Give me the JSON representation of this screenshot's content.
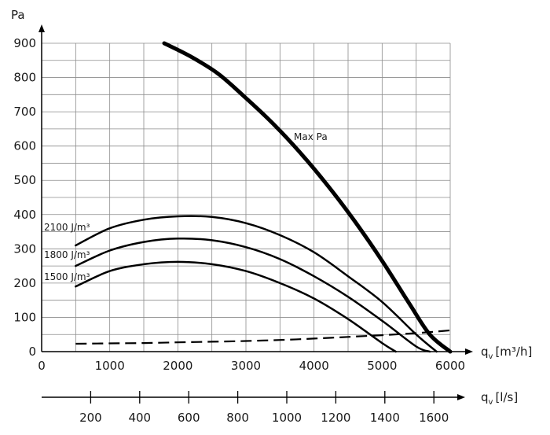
{
  "chart_data": {
    "type": "line",
    "title": "",
    "ylabel": "Pa",
    "xlabel": "qv [m³/h]",
    "xlabel_parts": {
      "main": "q",
      "sub": "v",
      "unit": "[m³/h]"
    },
    "x2label": "qv [l/s]",
    "x2label_parts": {
      "main": "q",
      "sub": "v",
      "unit": "[l/s]"
    },
    "xlim": [
      0,
      6000
    ],
    "ylim": [
      0,
      900
    ],
    "grid": true,
    "x_ticks": [
      0,
      1000,
      2000,
      3000,
      4000,
      5000,
      6000
    ],
    "y_ticks": [
      0,
      100,
      200,
      300,
      400,
      500,
      600,
      700,
      800,
      900
    ],
    "x2_ticks": [
      200,
      400,
      600,
      800,
      1000,
      1200,
      1400,
      1600
    ],
    "series": [
      {
        "name": "Max Pa",
        "style": "bold",
        "points": [
          [
            1800,
            900
          ],
          [
            2200,
            860
          ],
          [
            2600,
            810
          ],
          [
            3000,
            740
          ],
          [
            3400,
            665
          ],
          [
            3800,
            580
          ],
          [
            4200,
            485
          ],
          [
            4600,
            380
          ],
          [
            5000,
            265
          ],
          [
            5400,
            140
          ],
          [
            5700,
            50
          ],
          [
            6000,
            0
          ]
        ]
      },
      {
        "name": "2100 J/m³",
        "points": [
          [
            500,
            310
          ],
          [
            1000,
            360
          ],
          [
            1500,
            385
          ],
          [
            2000,
            395
          ],
          [
            2500,
            393
          ],
          [
            3000,
            375
          ],
          [
            3500,
            340
          ],
          [
            4000,
            290
          ],
          [
            4500,
            220
          ],
          [
            5000,
            145
          ],
          [
            5500,
            50
          ],
          [
            5800,
            0
          ]
        ]
      },
      {
        "name": "1800 J/m³",
        "points": [
          [
            500,
            250
          ],
          [
            1000,
            295
          ],
          [
            1500,
            320
          ],
          [
            2000,
            330
          ],
          [
            2500,
            325
          ],
          [
            3000,
            305
          ],
          [
            3500,
            270
          ],
          [
            4000,
            220
          ],
          [
            4500,
            160
          ],
          [
            5000,
            90
          ],
          [
            5500,
            15
          ],
          [
            5700,
            0
          ]
        ]
      },
      {
        "name": "1500 J/m³",
        "points": [
          [
            500,
            190
          ],
          [
            1000,
            235
          ],
          [
            1500,
            255
          ],
          [
            2000,
            262
          ],
          [
            2500,
            255
          ],
          [
            3000,
            235
          ],
          [
            3500,
            200
          ],
          [
            4000,
            155
          ],
          [
            4500,
            95
          ],
          [
            5000,
            25
          ],
          [
            5200,
            0
          ]
        ]
      },
      {
        "name": "",
        "style": "dashed",
        "points": [
          [
            500,
            23
          ],
          [
            1000,
            24
          ],
          [
            1500,
            25
          ],
          [
            2000,
            27
          ],
          [
            2500,
            29
          ],
          [
            3000,
            31
          ],
          [
            3500,
            34
          ],
          [
            4000,
            38
          ],
          [
            4500,
            43
          ],
          [
            5000,
            48
          ],
          [
            5500,
            54
          ],
          [
            6000,
            62
          ]
        ]
      }
    ]
  }
}
